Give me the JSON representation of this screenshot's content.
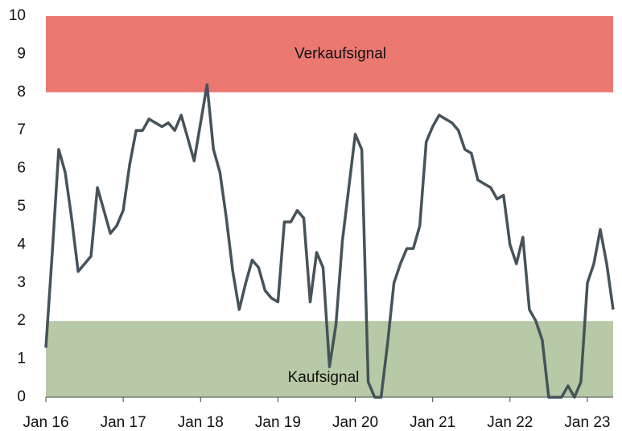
{
  "chart_data": {
    "type": "line",
    "x": [
      "2016-01",
      "2016-02",
      "2016-03",
      "2016-04",
      "2016-05",
      "2016-06",
      "2016-07",
      "2016-08",
      "2016-09",
      "2016-10",
      "2016-11",
      "2016-12",
      "2017-01",
      "2017-02",
      "2017-03",
      "2017-04",
      "2017-05",
      "2017-06",
      "2017-07",
      "2017-08",
      "2017-09",
      "2017-10",
      "2017-11",
      "2017-12",
      "2018-01",
      "2018-02",
      "2018-03",
      "2018-04",
      "2018-05",
      "2018-06",
      "2018-07",
      "2018-08",
      "2018-09",
      "2018-10",
      "2018-11",
      "2018-12",
      "2019-01",
      "2019-02",
      "2019-03",
      "2019-04",
      "2019-05",
      "2019-06",
      "2019-07",
      "2019-08",
      "2019-09",
      "2019-10",
      "2019-11",
      "2019-12",
      "2020-01",
      "2020-02",
      "2020-03",
      "2020-04",
      "2020-05",
      "2020-06",
      "2020-07",
      "2020-08",
      "2020-09",
      "2020-10",
      "2020-11",
      "2020-12",
      "2021-01",
      "2021-02",
      "2021-03",
      "2021-04",
      "2021-05",
      "2021-06",
      "2021-07",
      "2021-08",
      "2021-09",
      "2021-10",
      "2021-11",
      "2021-12",
      "2022-01",
      "2022-02",
      "2022-03",
      "2022-04",
      "2022-05",
      "2022-06",
      "2022-07",
      "2022-08",
      "2022-09",
      "2022-10",
      "2022-11",
      "2022-12",
      "2023-01",
      "2023-02",
      "2023-03",
      "2023-04",
      "2023-05"
    ],
    "series": [
      {
        "color": "#46535a",
        "values": [
          1.3,
          3.8,
          6.5,
          5.9,
          4.7,
          3.3,
          3.5,
          3.7,
          5.5,
          4.9,
          4.3,
          4.5,
          4.9,
          6.1,
          7.0,
          7.0,
          7.3,
          7.2,
          7.1,
          7.2,
          7.0,
          7.4,
          6.8,
          6.2,
          7.2,
          8.2,
          6.5,
          5.9,
          4.7,
          3.3,
          2.3,
          3.0,
          3.6,
          3.4,
          2.8,
          2.6,
          2.5,
          4.6,
          4.6,
          4.9,
          4.7,
          2.5,
          3.8,
          3.4,
          0.8,
          1.9,
          4.1,
          5.5,
          6.9,
          6.5,
          0.4,
          0,
          0,
          1.4,
          3.0,
          3.5,
          3.9,
          3.9,
          4.5,
          6.7,
          7.1,
          7.4,
          7.3,
          7.2,
          7.0,
          6.5,
          6.4,
          5.7,
          5.6,
          5.5,
          5.2,
          5.3,
          4.0,
          3.5,
          4.2,
          2.3,
          2.0,
          1.5,
          0,
          0,
          0,
          0.3,
          0,
          0.4,
          3.0,
          3.5,
          4.4,
          3.5,
          2.3
        ]
      }
    ],
    "bands": [
      {
        "label": "Verkaufsignal",
        "from": 8,
        "to": 10,
        "color": "#ec7872"
      },
      {
        "label": "Kaufsignal",
        "from": 0,
        "to": 2,
        "color": "#b7c9a6"
      }
    ],
    "xlim": [
      "2016-01",
      "2023-05"
    ],
    "xticks": [
      {
        "value": "2016-01",
        "label": "Jan 16"
      },
      {
        "value": "2017-01",
        "label": "Jan 17"
      },
      {
        "value": "2018-01",
        "label": "Jan 18"
      },
      {
        "value": "2019-01",
        "label": "Jan 19"
      },
      {
        "value": "2020-01",
        "label": "Jan 20"
      },
      {
        "value": "2021-01",
        "label": "Jan 21"
      },
      {
        "value": "2022-01",
        "label": "Jan 22"
      },
      {
        "value": "2023-01",
        "label": "Jan 23"
      }
    ],
    "ylim": [
      0,
      10
    ],
    "yticks": [
      0,
      1,
      2,
      3,
      4,
      5,
      6,
      7,
      8,
      9,
      10
    ]
  }
}
